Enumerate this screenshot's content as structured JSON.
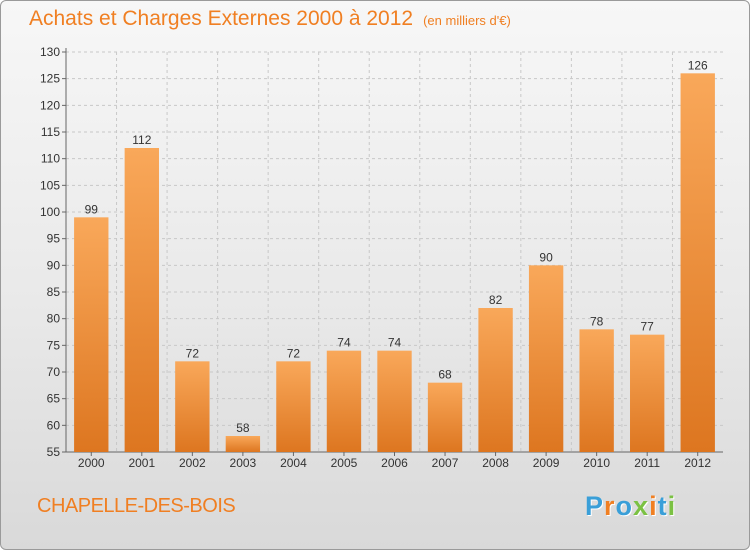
{
  "title": "Achats et Charges Externes 2000 à 2012",
  "subtitle": "(en milliers d'€)",
  "commune": "CHAPELLE-DES-BOIS",
  "brand": "Proxiti",
  "colors": {
    "accent": "#f07f22",
    "bar_light": "#f9a85a",
    "bar_dark": "#dd7620",
    "logo_letters": [
      "#3a9fd8",
      "#f07f22",
      "#3a9fd8",
      "#7bc143",
      "#f07f22",
      "#3a9fd8",
      "#7bc143"
    ]
  },
  "chart_data": {
    "type": "bar",
    "categories": [
      "2000",
      "2001",
      "2002",
      "2003",
      "2004",
      "2005",
      "2006",
      "2007",
      "2008",
      "2009",
      "2010",
      "2011",
      "2012"
    ],
    "values": [
      99,
      112,
      72,
      58,
      72,
      74,
      74,
      68,
      82,
      90,
      78,
      77,
      126
    ],
    "ylim": [
      55,
      130
    ],
    "yticks": [
      55,
      60,
      65,
      70,
      75,
      80,
      85,
      90,
      95,
      100,
      105,
      110,
      115,
      120,
      125,
      130
    ],
    "grid": true,
    "data_labels": true
  }
}
